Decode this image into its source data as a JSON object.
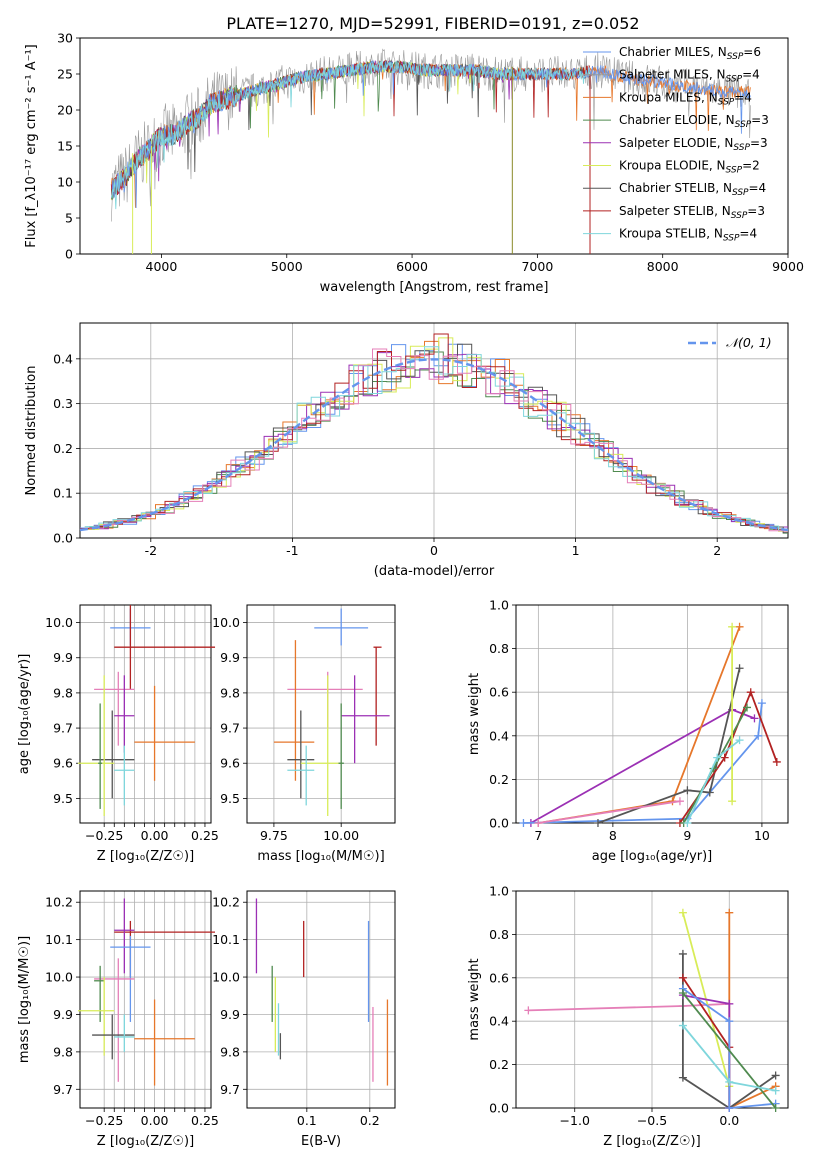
{
  "page": {
    "title": "PLATE=1270, MJD=52991, FIBERID=0191, z=0.052"
  },
  "colors": {
    "Chabrier MILES": "#6495ed",
    "Salpeter MILES": "#999999",
    "Kroupa MILES": "#e6772b",
    "Chabrier ELODIE": "#4f8a4f",
    "Salpeter ELODIE": "#9b30b4",
    "Kroupa ELODIE": "#d8ec58",
    "Chabrier STELIB": "#555555",
    "Salpeter STELIB": "#b22222",
    "Kroupa STELIB": "#7fd6dc",
    "pink": "#e57fb8",
    "normal": "#6495ed"
  },
  "chart_data": [
    {
      "id": "spectrum",
      "type": "line",
      "title": "PLATE=1270, MJD=52991, FIBERID=0191, z=0.052",
      "xlabel": "wavelength [Angstrom, rest frame]",
      "ylabel": "Flux [f_λ10⁻¹⁷ erg cm⁻² s⁻¹ A⁻¹]",
      "xlim": [
        3350,
        9000
      ],
      "ylim": [
        0,
        30
      ],
      "xticks": [
        4000,
        5000,
        6000,
        7000,
        8000,
        9000
      ],
      "yticks": [
        0,
        5,
        10,
        15,
        20,
        25,
        30
      ],
      "legend_position": "top-right",
      "legend": [
        {
          "name": "Chabrier MILES",
          "sub": "N",
          "ssp": "SSP",
          "n": "=6"
        },
        {
          "name": "Salpeter MILES",
          "sub": "N",
          "ssp": "SSP",
          "n": "=4"
        },
        {
          "name": "Kroupa MILES",
          "sub": "N",
          "ssp": "SSP",
          "n": "=4"
        },
        {
          "name": "Chabrier ELODIE",
          "sub": "N",
          "ssp": "SSP",
          "n": "=3"
        },
        {
          "name": "Salpeter ELODIE",
          "sub": "N",
          "ssp": "SSP",
          "n": "=3"
        },
        {
          "name": "Kroupa ELODIE",
          "sub": "N",
          "ssp": "SSP",
          "n": "=2"
        },
        {
          "name": "Chabrier STELIB",
          "sub": "N",
          "ssp": "SSP",
          "n": "=4"
        },
        {
          "name": "Salpeter STELIB",
          "sub": "N",
          "ssp": "SSP",
          "n": "=3"
        },
        {
          "name": "Kroupa STELIB",
          "sub": "N",
          "ssp": "SSP",
          "n": "=4"
        }
      ],
      "envelope": {
        "x": [
          3600,
          3700,
          3800,
          3900,
          4000,
          4100,
          4200,
          4300,
          4400,
          4500,
          4700,
          4900,
          5100,
          5300,
          5500,
          5700,
          5900,
          6100,
          6300,
          6500,
          6700,
          6900,
          7100,
          7300,
          7500,
          7700,
          7900,
          8100,
          8300,
          8500,
          8700
        ],
        "y": [
          9.0,
          10.5,
          13.0,
          14.5,
          16.5,
          16.5,
          18.0,
          19.0,
          21.0,
          21.5,
          22.5,
          23.5,
          24.5,
          25.0,
          25.5,
          26.0,
          26.0,
          25.5,
          25.5,
          25.5,
          25.0,
          25.0,
          25.0,
          25.0,
          25.5,
          24.5,
          24.0,
          23.5,
          23.0,
          22.5,
          22.5
        ]
      },
      "spikes": [
        {
          "x": 6800,
          "y": [
            0,
            26
          ]
        },
        {
          "x": 7420,
          "y": [
            0,
            25
          ]
        },
        {
          "x": 3770,
          "y": [
            0,
            14
          ]
        },
        {
          "x": 3920,
          "y": [
            0,
            15
          ]
        }
      ]
    },
    {
      "id": "residual_hist",
      "type": "histogram",
      "xlabel": "(data-model)/error",
      "ylabel": "Normed distribution",
      "xlim": [
        -2.5,
        2.5
      ],
      "ylim": [
        0,
        0.48
      ],
      "xticks": [
        -2,
        -1,
        0,
        1,
        2
      ],
      "yticks": [
        0.0,
        0.1,
        0.2,
        0.3,
        0.4
      ],
      "bin_width": 0.1,
      "legend": [
        {
          "name": "𝒩(0, 1)",
          "style": "dashed"
        }
      ],
      "legend_position": "top-right"
    },
    {
      "id": "age_vs_Z",
      "type": "errorbar",
      "xlabel": "Z [log₁₀(Z/Z☉)]",
      "ylabel": "age  [log₁₀(age/yr)]",
      "xlim": [
        -0.37,
        0.28
      ],
      "ylim": [
        9.43,
        10.05
      ],
      "xticks": [
        -0.25,
        -0.2,
        -0.15,
        -0.1,
        -0.05,
        0.0,
        0.05,
        0.1,
        0.15,
        0.2,
        0.25
      ],
      "xtick_labels": [
        "−0.25",
        "",
        "",
        "",
        "",
        "0.00",
        "",
        "",
        "",
        "",
        "0.25"
      ],
      "yticks": [
        9.5,
        9.6,
        9.7,
        9.8,
        9.9,
        10.0
      ],
      "points": [
        {
          "c": "Chabrier MILES",
          "x": -0.12,
          "xe": [
            -0.22,
            -0.02
          ],
          "y": 9.985,
          "ye": [
            9.935,
            10.04
          ]
        },
        {
          "c": "Salpeter STELIB",
          "x": -0.12,
          "xe": [
            -0.2,
            0.3
          ],
          "y": 9.93,
          "ye": [
            9.81,
            10.05
          ]
        },
        {
          "c": "pink",
          "x": -0.18,
          "xe": [
            -0.3,
            -0.1
          ],
          "y": 9.81,
          "ye": [
            9.65,
            9.86
          ]
        },
        {
          "c": "Salpeter ELODIE",
          "x": -0.15,
          "xe": [
            -0.2,
            -0.1
          ],
          "y": 9.735,
          "ye": [
            9.63,
            9.85
          ]
        },
        {
          "c": "Kroupa MILES",
          "x": 0.0,
          "xe": [
            -0.1,
            0.2
          ],
          "y": 9.66,
          "ye": [
            9.55,
            9.82
          ]
        },
        {
          "c": "Chabrier STELIB",
          "x": -0.21,
          "xe": [
            -0.31,
            -0.1
          ],
          "y": 9.61,
          "ye": [
            9.5,
            9.75
          ]
        },
        {
          "c": "Kroupa ELODIE",
          "x": -0.25,
          "xe": [
            -0.38,
            -0.2
          ],
          "y": 9.6,
          "ye": [
            9.45,
            9.85
          ]
        },
        {
          "c": "Chabrier ELODIE",
          "x": -0.27,
          "xe": [
            -0.28,
            -0.26
          ],
          "y": 9.6,
          "ye": [
            9.47,
            9.77
          ]
        },
        {
          "c": "Kroupa STELIB",
          "x": -0.15,
          "xe": [
            -0.2,
            -0.1
          ],
          "y": 9.58,
          "ye": [
            9.48,
            9.65
          ]
        }
      ]
    },
    {
      "id": "age_vs_mass",
      "type": "errorbar",
      "xlabel": "mass [log₁₀(M/M☉)]",
      "ylabel": "",
      "xlim": [
        9.65,
        10.2
      ],
      "ylim": [
        9.43,
        10.05
      ],
      "xticks": [
        9.75,
        10.0
      ],
      "xtick_labels": [
        "9.75",
        "10.00"
      ],
      "yticks": [
        9.5,
        9.6,
        9.7,
        9.8,
        9.9,
        10.0
      ],
      "points": [
        {
          "c": "Chabrier MILES",
          "x": 10.0,
          "xe": [
            9.9,
            10.1
          ],
          "y": 9.985,
          "ye": [
            9.935,
            10.04
          ]
        },
        {
          "c": "Salpeter STELIB",
          "x": 10.13,
          "xe": [
            10.12,
            10.15
          ],
          "y": 9.93,
          "ye": [
            9.65,
            9.93
          ]
        },
        {
          "c": "pink",
          "x": 9.95,
          "xe": [
            9.8,
            10.08
          ],
          "y": 9.81,
          "ye": [
            9.7,
            9.86
          ]
        },
        {
          "c": "Salpeter ELODIE",
          "x": 10.05,
          "xe": [
            10.0,
            10.18
          ],
          "y": 9.735,
          "ye": [
            9.6,
            9.85
          ]
        },
        {
          "c": "Kroupa MILES",
          "x": 9.83,
          "xe": [
            9.75,
            9.9
          ],
          "y": 9.66,
          "ye": [
            9.55,
            9.95
          ]
        },
        {
          "c": "Chabrier STELIB",
          "x": 9.85,
          "xe": [
            9.8,
            9.9
          ],
          "y": 9.61,
          "ye": [
            9.5,
            9.75
          ]
        },
        {
          "c": "Kroupa ELODIE",
          "x": 9.95,
          "xe": [
            9.85,
            10.0
          ],
          "y": 9.6,
          "ye": [
            9.45,
            9.85
          ]
        },
        {
          "c": "Chabrier ELODIE",
          "x": 10.0,
          "xe": [
            9.99,
            10.01
          ],
          "y": 9.6,
          "ye": [
            9.47,
            9.77
          ]
        },
        {
          "c": "Kroupa STELIB",
          "x": 9.87,
          "xe": [
            9.8,
            9.9
          ],
          "y": 9.58,
          "ye": [
            9.48,
            9.65
          ]
        }
      ]
    },
    {
      "id": "massweight_vs_age",
      "type": "line",
      "xlabel": "age  [log₁₀(age/yr)]",
      "ylabel": "mass weight",
      "xlim": [
        6.7,
        10.35
      ],
      "ylim": [
        0,
        1
      ],
      "xticks": [
        7,
        8,
        9,
        10
      ],
      "yticks": [
        0.0,
        0.2,
        0.4,
        0.6,
        0.8,
        1.0
      ],
      "series": [
        {
          "c": "Salpeter ELODIE",
          "x": [
            6.9,
            9.6,
            9.9
          ],
          "y": [
            0.0,
            0.52,
            0.48
          ]
        },
        {
          "c": "Kroupa MILES",
          "x": [
            7.0,
            8.8,
            9.7
          ],
          "y": [
            0.0,
            0.1,
            0.9
          ]
        },
        {
          "c": "Chabrier MILES",
          "x": [
            6.8,
            9.0,
            9.95,
            10.0
          ],
          "y": [
            0.0,
            0.02,
            0.4,
            0.55
          ]
        },
        {
          "c": "Chabrier STELIB",
          "x": [
            7.8,
            9.0,
            9.3,
            9.7
          ],
          "y": [
            0.0,
            0.15,
            0.14,
            0.71
          ]
        },
        {
          "c": "Salpeter STELIB",
          "x": [
            8.9,
            9.5,
            9.85,
            10.2
          ],
          "y": [
            0.0,
            0.3,
            0.6,
            0.28
          ]
        },
        {
          "c": "Chabrier ELODIE",
          "x": [
            8.95,
            9.35,
            9.8
          ],
          "y": [
            0.0,
            0.25,
            0.53
          ]
        },
        {
          "c": "Kroupa ELODIE",
          "x": [
            9.6,
            9.6
          ],
          "y": [
            0.1,
            0.9
          ]
        },
        {
          "c": "Kroupa STELIB",
          "x": [
            9.0,
            9.4,
            9.7
          ],
          "y": [
            0.0,
            0.3,
            0.38
          ]
        },
        {
          "c": "pink",
          "x": [
            7.0,
            8.9
          ],
          "y": [
            0.0,
            0.1
          ]
        }
      ]
    },
    {
      "id": "mass_vs_Z",
      "type": "errorbar",
      "xlabel": "Z [log₁₀(Z/Z☉)]",
      "ylabel": "mass [log₁₀(M/M☉)]",
      "xlim": [
        -0.37,
        0.28
      ],
      "ylim": [
        9.65,
        10.23
      ],
      "xticks": [
        -0.25,
        -0.2,
        -0.15,
        -0.1,
        -0.05,
        0.0,
        0.05,
        0.1,
        0.15,
        0.2,
        0.25
      ],
      "xtick_labels": [
        "−0.25",
        "",
        "",
        "",
        "",
        "0.00",
        "",
        "",
        "",
        "",
        "0.25"
      ],
      "yticks": [
        9.7,
        9.8,
        9.9,
        10.0,
        10.1,
        10.2
      ],
      "points": [
        {
          "c": "Salpeter STELIB",
          "x": -0.12,
          "xe": [
            -0.2,
            0.3
          ],
          "y": 10.12,
          "ye": [
            10.0,
            10.15
          ]
        },
        {
          "c": "Salpeter ELODIE",
          "x": -0.15,
          "xe": [
            -0.2,
            -0.1
          ],
          "y": 10.125,
          "ye": [
            10.01,
            10.21
          ]
        },
        {
          "c": "Chabrier MILES",
          "x": -0.12,
          "xe": [
            -0.22,
            -0.02
          ],
          "y": 10.08,
          "ye": [
            9.88,
            10.11
          ]
        },
        {
          "c": "pink",
          "x": -0.18,
          "xe": [
            -0.3,
            -0.1
          ],
          "y": 9.995,
          "ye": [
            9.72,
            10.05
          ]
        },
        {
          "c": "Chabrier ELODIE",
          "x": -0.27,
          "xe": [
            -0.3,
            -0.25
          ],
          "y": 9.99,
          "ye": [
            9.88,
            10.03
          ]
        },
        {
          "c": "Kroupa ELODIE",
          "x": -0.25,
          "xe": [
            -0.38,
            -0.2
          ],
          "y": 9.91,
          "ye": [
            9.79,
            10.0
          ]
        },
        {
          "c": "Chabrier STELIB",
          "x": -0.21,
          "xe": [
            -0.31,
            -0.1
          ],
          "y": 9.845,
          "ye": [
            9.78,
            9.9
          ]
        },
        {
          "c": "Kroupa MILES",
          "x": 0.0,
          "xe": [
            -0.1,
            0.2
          ],
          "y": 9.835,
          "ye": [
            9.71,
            9.94
          ]
        },
        {
          "c": "Kroupa STELIB",
          "x": -0.15,
          "xe": [
            -0.2,
            -0.1
          ],
          "y": 9.84,
          "ye": [
            9.8,
            9.9
          ]
        }
      ]
    },
    {
      "id": "mass_vs_ebv",
      "type": "errorbar",
      "xlabel": "E(B-V)",
      "ylabel": "",
      "xlim": [
        0.005,
        0.24
      ],
      "ylim": [
        9.65,
        10.23
      ],
      "xticks": [
        0.1,
        0.2
      ],
      "xtick_labels": [
        "0.1",
        "0.2"
      ],
      "yticks": [
        9.7,
        9.8,
        9.9,
        10.0,
        10.1,
        10.2
      ],
      "points": [
        {
          "c": "Salpeter ELODIE",
          "x": 0.02,
          "xe": [
            0.02,
            0.02
          ],
          "y": 10.12,
          "ye": [
            10.01,
            10.21
          ]
        },
        {
          "c": "Salpeter STELIB",
          "x": 0.095,
          "xe": [
            0.095,
            0.095
          ],
          "y": 10.07,
          "ye": [
            10.0,
            10.15
          ]
        },
        {
          "c": "Chabrier ELODIE",
          "x": 0.045,
          "xe": [
            0.045,
            0.045
          ],
          "y": 9.95,
          "ye": [
            9.88,
            10.03
          ]
        },
        {
          "c": "Kroupa ELODIE",
          "x": 0.05,
          "xe": [
            0.05,
            0.05
          ],
          "y": 9.9,
          "ye": [
            9.8,
            10.0
          ]
        },
        {
          "c": "Kroupa STELIB",
          "x": 0.055,
          "xe": [
            0.055,
            0.055
          ],
          "y": 9.85,
          "ye": [
            9.79,
            9.93
          ]
        },
        {
          "c": "Chabrier STELIB",
          "x": 0.058,
          "xe": [
            0.058,
            0.058
          ],
          "y": 9.82,
          "ye": [
            9.78,
            9.85
          ]
        },
        {
          "c": "Chabrier MILES",
          "x": 0.198,
          "xe": [
            0.198,
            0.198
          ],
          "y": 9.96,
          "ye": [
            9.88,
            10.15
          ]
        },
        {
          "c": "pink",
          "x": 0.205,
          "xe": [
            0.205,
            0.205
          ],
          "y": 9.84,
          "ye": [
            9.72,
            9.92
          ]
        },
        {
          "c": "Kroupa MILES",
          "x": 0.228,
          "xe": [
            0.228,
            0.228
          ],
          "y": 9.83,
          "ye": [
            9.71,
            9.94
          ]
        }
      ]
    },
    {
      "id": "massweight_vs_Z",
      "type": "line",
      "xlabel": "Z [log₁₀(Z/Z☉)]",
      "ylabel": "mass weight",
      "xlim": [
        -1.38,
        0.38
      ],
      "ylim": [
        0,
        1
      ],
      "xticks": [
        -1.0,
        -0.5,
        0.0
      ],
      "xtick_labels": [
        "−1.0",
        "−0.5",
        "0.0"
      ],
      "yticks": [
        0.0,
        0.2,
        0.4,
        0.6,
        0.8,
        1.0
      ],
      "series": [
        {
          "c": "pink",
          "x": [
            -1.3,
            -0.3,
            0.0
          ],
          "y": [
            0.45,
            0.47,
            0.48
          ]
        },
        {
          "c": "Kroupa ELODIE",
          "x": [
            -0.3,
            0.0
          ],
          "y": [
            0.9,
            0.1
          ]
        },
        {
          "c": "Kroupa MILES",
          "x": [
            0.0,
            0.0,
            0.3
          ],
          "y": [
            0.9,
            0.0,
            0.1
          ]
        },
        {
          "c": "Chabrier STELIB",
          "x": [
            -0.3,
            -0.3,
            0.0,
            0.3
          ],
          "y": [
            0.71,
            0.14,
            0.0,
            0.15
          ]
        },
        {
          "c": "Salpeter STELIB",
          "x": [
            -0.3,
            0.0,
            0.0
          ],
          "y": [
            0.6,
            0.28,
            0.0
          ]
        },
        {
          "c": "Salpeter ELODIE",
          "x": [
            -0.3,
            0.0,
            0.0
          ],
          "y": [
            0.52,
            0.48,
            0.0
          ]
        },
        {
          "c": "Chabrier MILES",
          "x": [
            -0.3,
            0.0,
            0.0,
            0.3
          ],
          "y": [
            0.55,
            0.4,
            0.0,
            0.02
          ]
        },
        {
          "c": "Chabrier ELODIE",
          "x": [
            -0.3,
            0.3
          ],
          "y": [
            0.53,
            0.0
          ]
        },
        {
          "c": "Kroupa STELIB",
          "x": [
            -0.3,
            0.0,
            0.3
          ],
          "y": [
            0.38,
            0.12,
            0.08
          ]
        }
      ]
    }
  ]
}
